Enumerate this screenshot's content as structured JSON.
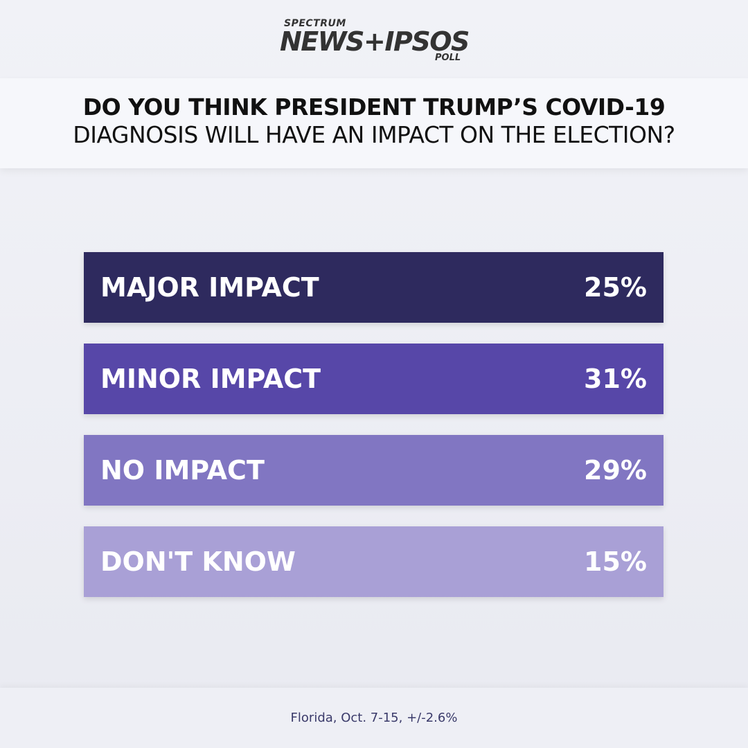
{
  "logo": {
    "top": "SPECTRUM",
    "main": "NEWS+IPSOS",
    "bottom": "POLL"
  },
  "question": {
    "line1": "DO YOU THINK PRESIDENT TRUMP’S COVID-19",
    "line2": "DIAGNOSIS WILL HAVE AN IMPACT ON THE ELECTION?"
  },
  "options": [
    {
      "label": "MAJOR IMPACT",
      "percent": "25%",
      "color": "#2e2a5e"
    },
    {
      "label": "MINOR IMPACT",
      "percent": "31%",
      "color": "#5747a8"
    },
    {
      "label": "NO IMPACT",
      "percent": "29%",
      "color": "#8176c2"
    },
    {
      "label": "DON'T KNOW",
      "percent": "15%",
      "color": "#a9a0d6"
    }
  ],
  "footer": "Florida, Oct. 7-15, +/-2.6%"
}
